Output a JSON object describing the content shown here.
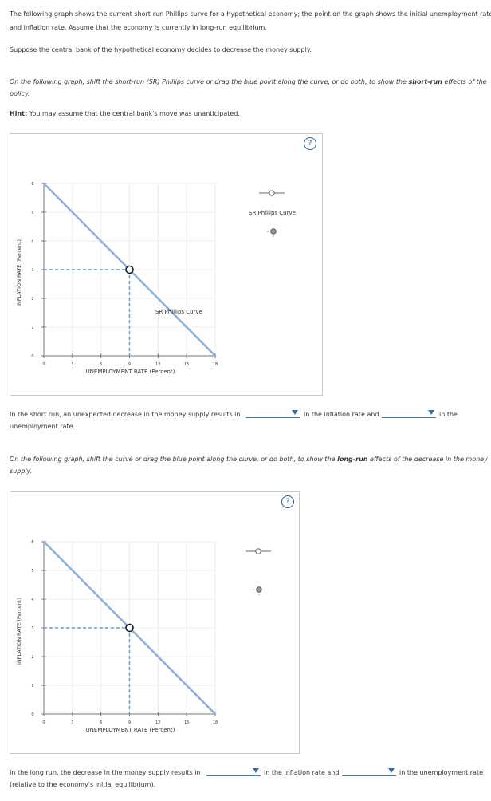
{
  "intro": {
    "line1": "The following graph shows the current short-run Phillips curve for a hypothetical economy; the point on the graph shows the initial unemployment rate",
    "line2": "and inflation rate. Assume that the economy is currently in long-run equilibrium.",
    "scenario": "Suppose the central bank of the hypothetical economy decides to decrease the money supply."
  },
  "part1": {
    "instr_a": "On the following graph, shift the short-run (SR) Phillips curve or drag the blue point along the curve, or do both, to show the",
    "instr_bold": "short-run",
    "instr_b": "effects of the",
    "instr_line2": "policy.",
    "hint_label": "Hint:",
    "hint_text": "You may assume that the central bank's move was unanticipated.",
    "help": "?",
    "curve_label": "SR Phillips Curve",
    "legend_label": "SR Phillips Curve",
    "answer_a": "In the short run, an unexpected decrease in the money supply results in",
    "answer_b": "in the inflation rate and",
    "answer_c": "in the",
    "answer_line2": "unemployment rate.",
    "dropdown1": "",
    "dropdown2": ""
  },
  "part2": {
    "instr_a": "On the following graph, shift the curve or drag the blue point along the curve, or do both, to show the",
    "instr_bold": "long-run",
    "instr_b": "effects of the decrease in the money",
    "instr_line2": "supply.",
    "help": "?",
    "answer_a": "In the long run, the decrease in the money supply results in",
    "answer_b": "in the inflation rate and",
    "answer_c": "in the unemployment rate",
    "answer_line2": "(relative to the economy's initial equilibrium).",
    "dropdown1": "",
    "dropdown2": ""
  },
  "chart_data": [
    {
      "type": "line",
      "xlabel": "UNEMPLOYMENT RATE (Percent)",
      "ylabel": "INFLATION RATE (Percent)",
      "xlim": [
        0,
        18
      ],
      "ylim": [
        0,
        6
      ],
      "x_ticks": [
        0,
        3,
        6,
        9,
        12,
        15,
        18
      ],
      "y_ticks": [
        0,
        1,
        2,
        3,
        4,
        5,
        6
      ],
      "grid": true,
      "series": [
        {
          "name": "SR Phillips Curve",
          "x": [
            0,
            18
          ],
          "y": [
            6,
            0
          ]
        }
      ],
      "point": {
        "x": 9,
        "y": 3
      },
      "legend": "right"
    },
    {
      "type": "line",
      "xlabel": "UNEMPLOYMENT RATE (Percent)",
      "ylabel": "INFLATION RATE (Percent)",
      "xlim": [
        0,
        18
      ],
      "ylim": [
        0,
        6
      ],
      "x_ticks": [
        0,
        3,
        6,
        9,
        12,
        15,
        18
      ],
      "y_ticks": [
        0,
        1,
        2,
        3,
        4,
        5,
        6
      ],
      "grid": true,
      "series": [
        {
          "x": [
            0,
            18
          ],
          "y": [
            6,
            0
          ]
        }
      ],
      "point": {
        "x": 9,
        "y": 3
      },
      "legend": "right"
    }
  ],
  "colors": {
    "curve": "#8cb0d8",
    "point_stroke": "#1b1b1b",
    "link": "#2a6fb8"
  }
}
